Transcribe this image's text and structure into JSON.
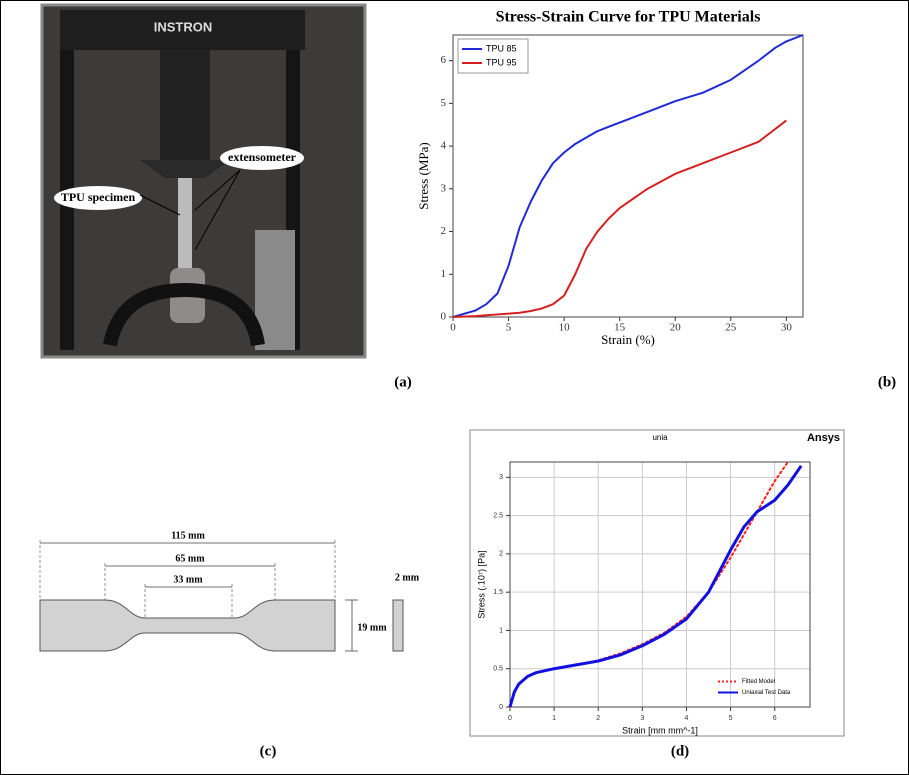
{
  "figure": {
    "panel_labels": [
      "(a)",
      "(b)",
      "(c)",
      "(d)"
    ]
  },
  "photo": {
    "brand": "INSTRON",
    "callouts": [
      "TPU specimen",
      "extensometer"
    ]
  },
  "diagram": {
    "dimensions": [
      "115 mm",
      "65 mm",
      "33 mm",
      "2 mm",
      "19 mm"
    ]
  },
  "chart_data": [
    {
      "type": "line",
      "title": "Stress-Strain Curve for TPU Materials",
      "x_label": "Strain (%)",
      "y_label": "Stress (MPa)",
      "x": [
        0,
        2,
        3,
        4,
        5,
        6,
        7,
        8,
        9,
        10,
        11,
        12,
        13,
        14,
        15,
        17.5,
        20,
        22.5,
        25,
        27.5,
        29,
        30,
        31.5
      ],
      "series": [
        {
          "name": "TPU 85",
          "color": "#1f2bd6",
          "values": [
            0,
            0.15,
            0.3,
            0.55,
            1.2,
            2.1,
            2.7,
            3.2,
            3.6,
            3.85,
            4.05,
            4.2,
            4.35,
            4.45,
            4.55,
            4.8,
            5.05,
            5.25,
            5.55,
            6.0,
            6.3,
            6.45,
            6.6
          ]
        },
        {
          "name": "TPU 95",
          "color": "#d62020",
          "values": [
            0,
            0.02,
            0.04,
            0.06,
            0.08,
            0.1,
            0.14,
            0.2,
            0.3,
            0.5,
            1.0,
            1.6,
            2.0,
            2.3,
            2.55,
            3.0,
            3.35,
            3.6,
            3.85,
            4.1,
            4.4,
            4.6,
            null
          ]
        }
      ],
      "xlim": [
        0,
        31.5
      ],
      "ylim": [
        0,
        6.6
      ],
      "xticks": [
        0,
        5,
        10,
        15,
        20,
        25,
        30
      ],
      "yticks": [
        0,
        1,
        2,
        3,
        4,
        5,
        6
      ],
      "grid": false,
      "legend": "upper left"
    },
    {
      "type": "line",
      "title": "unia",
      "logo": "Ansys",
      "x_label": "Strain  [mm mm^-1]",
      "y_label": "Stress (.10⁷) [Pa]",
      "x": [
        0,
        0.1,
        0.2,
        0.4,
        0.6,
        1,
        1.5,
        2,
        2.5,
        3,
        3.5,
        4,
        4.5,
        5,
        5.3,
        5.6,
        6,
        6.3,
        6.6
      ],
      "series": [
        {
          "name": "Fitted Model",
          "color": "#ff2020",
          "style": "dotted",
          "values": [
            0,
            0.18,
            0.3,
            0.4,
            0.45,
            0.5,
            0.55,
            0.61,
            0.7,
            0.82,
            0.97,
            1.18,
            1.5,
            1.95,
            2.25,
            2.55,
            2.95,
            3.2,
            null
          ]
        },
        {
          "name": "Uniaxial Test Data",
          "color": "#1010e0",
          "style": "solid",
          "values": [
            0,
            0.2,
            0.3,
            0.4,
            0.45,
            0.5,
            0.55,
            0.6,
            0.68,
            0.8,
            0.95,
            1.15,
            1.5,
            2.05,
            2.35,
            2.55,
            2.7,
            2.9,
            3.15
          ]
        }
      ],
      "xlim": [
        0,
        6.8
      ],
      "ylim": [
        0,
        3.2
      ],
      "xticks": [
        0,
        1,
        2,
        3,
        4,
        5,
        6
      ],
      "yticks": [
        0,
        0.5,
        1,
        1.5,
        2,
        2.5,
        3
      ],
      "grid": true,
      "legend": "lower right"
    }
  ]
}
